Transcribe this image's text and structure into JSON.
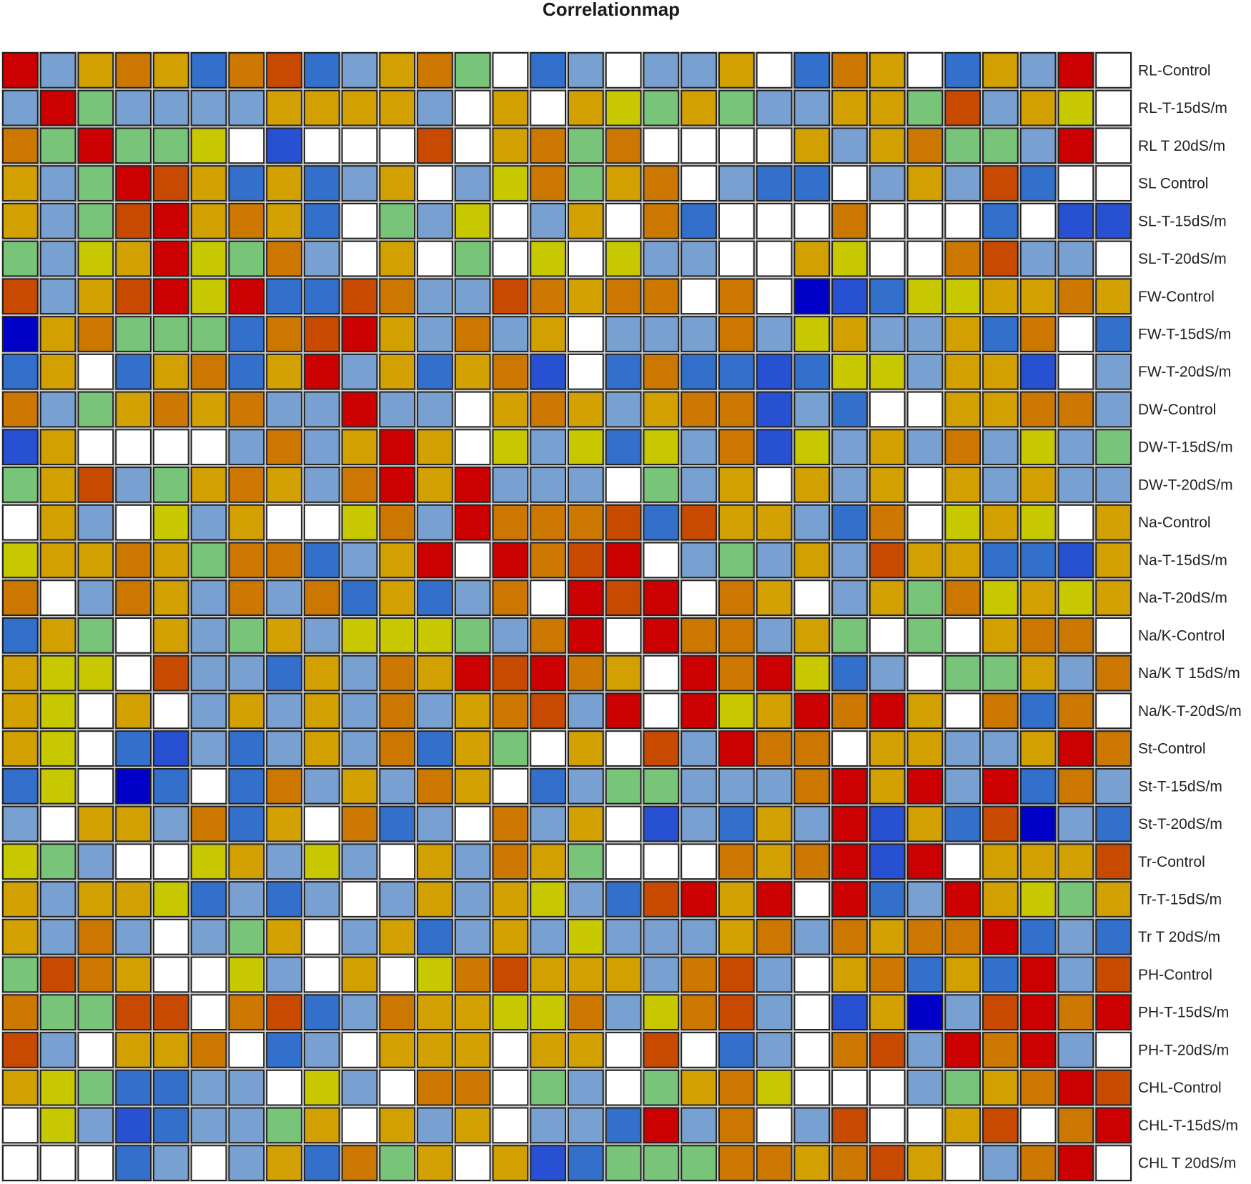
{
  "chart_data": {
    "type": "heatmap",
    "title": "Correlationmap",
    "row_labels": [
      "RL-Control",
      "RL-T-15dS/m",
      "RL T 20dS/m",
      "SL Control",
      "SL-T-15dS/m",
      "SL-T-20dS/m",
      "FW-Control",
      "FW-T-15dS/m",
      "FW-T-20dS/m",
      "DW-Control",
      "DW-T-15dS/m",
      "DW-T-20dS/m",
      "Na-Control",
      "Na-T-15dS/m",
      "Na-T-20dS/m",
      "Na/K-Control",
      "Na/K T 15dS/m",
      "Na/K-T-20dS/m",
      "St-Control",
      "St-T-15dS/m",
      "St-T-20dS/m",
      "Tr-Control",
      "Tr-T-15dS/m",
      "Tr T 20dS/m",
      "PH-Control",
      "PH-T-15dS/m",
      "PH-T-20dS/m",
      "CHL-Control",
      "CHL-T-15dS/m",
      "CHL T 20dS/m"
    ],
    "color_scale": {
      "0": "#0000c8",
      "1": "#2850d2",
      "2": "#3270cc",
      "3": "#78a0d0",
      "4": "#ffffff",
      "5": "#78c478",
      "6": "#c8c800",
      "7": "#d2a000",
      "8": "#cc7800",
      "9": "#c84a00",
      "10": "#cc0000"
    },
    "values": [
      "A378728923785423433742874273A4",
      "3A5333377773474765753377593764",
      "85A5564144494785844447378553A4",
      "735A9727237436857843224373924",
      "7359A7872453643748244484442411",
      "5367A6583474546463344764489334",
      "9379A6A2298339878848401266778733",
      "078555289A7383743338367337284264",
      "27427827A372781428221266377143689",
      "835787833A334787378813244778834",
      "1744443837A7463626381637383635",
      "5793578738A7A33345374737473733",
      "473463744683A888929773284676475",
      "67787588237A4A89A43537397722171",
      "843873838272384A9A48743758676721",
      "275473573666538A4A8837545478846",
      "766493327387A9A874A8A623455738742",
      "7647437373837893A4A67A8A7482848754",
      "7642132373827547493A88477337A8",
      "2640242837387423553338A7A3A28386",
      "3477382748234837413273A1729032448",
      "6534467363473875444878A1A4777987A8",
      "737762323437376329A7A4A23A7657834",
      "73834357437237363337838788A23294",
      "598744634746897773893478272A39753",
      "855994892387766836893417039A8A938",
      "9347784234777477494234893A8A34",
      "7652233463488453457864443578A98",
      "46312335747374332A38439447948A8",
      "4442343728574712555887897438A"
    ]
  }
}
